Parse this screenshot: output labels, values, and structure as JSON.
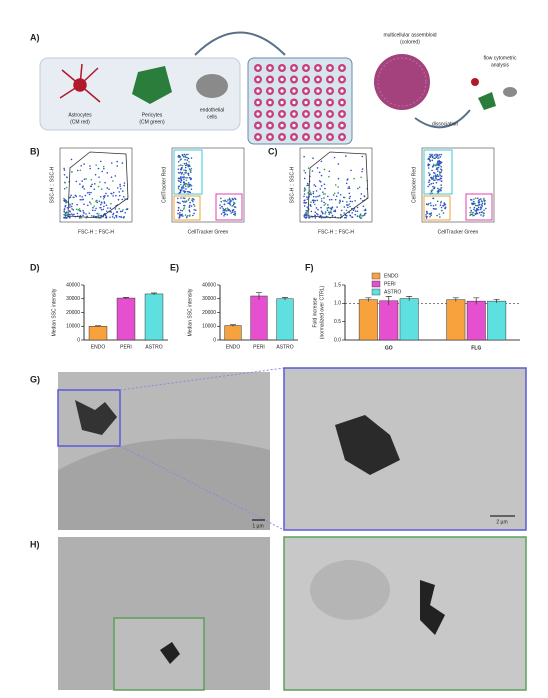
{
  "panel_a": {
    "label": "A)",
    "astrocytes": "Astrocytes",
    "astrocytes_sub": "(CM red)",
    "pericytes": "Pericytes",
    "pericytes_sub": "(CM green)",
    "endothelial": "endothelial",
    "endothelial_sub": "cells",
    "assembloid": "multicellular assembloid",
    "assembloid_sub": "(colored)",
    "flow": "flow cytometric",
    "flow_sub": "analysis",
    "dissociation": "dissociation"
  },
  "panel_b": {
    "label": "B)",
    "scatter_y": "SSC-H :: SSC-H",
    "scatter_x": "FSC-H :: FSC-H",
    "quad_y": "CellTracker Red",
    "quad_x": "CellTracker Green"
  },
  "panel_c": {
    "label": "C)",
    "scatter_y": "SSC-H :: SSC-H",
    "scatter_x": "FSC-H :: FSC-H",
    "quad_y": "CellTracker Red",
    "quad_x": "CellTracker Green"
  },
  "panel_g": {
    "label": "G)",
    "scale_left": "1 µm",
    "scale_right": "2 µm"
  },
  "panel_h": {
    "label": "H)"
  },
  "chart_data": [
    {
      "type": "bar",
      "label": "D)",
      "y_label": "Median SSC intensity",
      "categories": [
        "ENDO",
        "PERI",
        "ASTRO"
      ],
      "values": [
        10000,
        30500,
        33500
      ],
      "errors": [
        400,
        500,
        700
      ],
      "colors": [
        "#f7a23c",
        "#e64fd0",
        "#5fe0e0"
      ],
      "ylim": [
        0,
        40000
      ],
      "yticks": [
        0,
        10000,
        20000,
        30000,
        40000
      ]
    },
    {
      "type": "bar",
      "label": "E)",
      "y_label": "Median SSC intensity",
      "categories": [
        "ENDO",
        "PERI",
        "ASTRO"
      ],
      "values": [
        10500,
        32000,
        30000
      ],
      "errors": [
        600,
        2500,
        1000
      ],
      "colors": [
        "#f7a23c",
        "#e64fd0",
        "#5fe0e0"
      ],
      "ylim": [
        0,
        40000
      ],
      "yticks": [
        0,
        10000,
        20000,
        30000,
        40000
      ]
    },
    {
      "type": "grouped-bar",
      "label": "F)",
      "y_label": "Fold increase",
      "y_label_sub": "(normalized over CTRL)",
      "categories": [
        "GO",
        "FLG"
      ],
      "series": [
        {
          "name": "ENDO",
          "color": "#f7a23c",
          "values": [
            1.1,
            1.1
          ],
          "errors": [
            0.05,
            0.05
          ]
        },
        {
          "name": "PERI",
          "color": "#e64fd0",
          "values": [
            1.07,
            1.06
          ],
          "errors": [
            0.12,
            0.09
          ]
        },
        {
          "name": "ASTRO",
          "color": "#5fe0e0",
          "values": [
            1.13,
            1.06
          ],
          "errors": [
            0.06,
            0.05
          ]
        }
      ],
      "ylim": [
        0,
        1.5
      ],
      "yticks": [
        {
          "value": 0,
          "label": "0.0"
        },
        {
          "value": 0.5,
          "label": "0.5"
        },
        {
          "value": 1,
          "label": "1.0"
        },
        {
          "value": 1.5,
          "label": "1.5"
        }
      ],
      "reference_line": 1
    }
  ]
}
